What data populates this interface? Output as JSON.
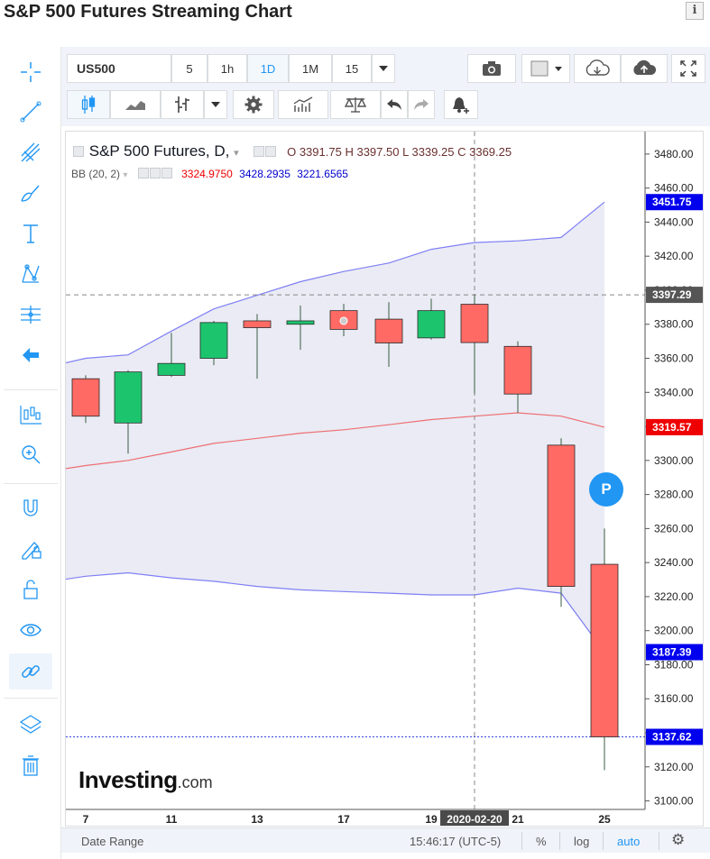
{
  "page": {
    "title": "S&P 500 Futures Streaming Chart",
    "info_icon": "i"
  },
  "toolbar": {
    "symbol": "US500",
    "intervals": [
      "5",
      "1h",
      "1D",
      "1M",
      "15"
    ],
    "selected_interval": "1D"
  },
  "legend": {
    "symbol_line": "S&P 500 Futures, D,",
    "open_label": "O",
    "open": "3391.75",
    "high_label": "H",
    "high": "3397.50",
    "low_label": "L",
    "low": "3339.25",
    "close_label": "C",
    "close": "3369.25",
    "indicator": "BB (20, 2)",
    "bb_middle": "3324.9750",
    "bb_upper": "3428.2935",
    "bb_lower": "3221.6565"
  },
  "bottom_bar": {
    "date_range": "Date Range",
    "time": "15:46:17 (UTC-5)",
    "percent": "%",
    "log": "log",
    "auto": "auto"
  },
  "watermark": {
    "brand": "Investing",
    "suffix": ".com"
  },
  "chart_data": {
    "type": "candlestick",
    "title": "S&P 500 Futures, D",
    "ylim": [
      3095,
      3490
    ],
    "y_ticks": [
      3100,
      3120,
      3140,
      3160,
      3180,
      3200,
      3220,
      3240,
      3260,
      3280,
      3300,
      3320,
      3340,
      3360,
      3380,
      3400,
      3420,
      3440,
      3460,
      3480
    ],
    "x_ticks": [
      "7",
      "11",
      "13",
      "17",
      "19",
      "21",
      "25"
    ],
    "crosshair_date": "2020-02-20",
    "crosshair_price": "3397.29",
    "price_tags": [
      {
        "label": "3451.75",
        "value": 3451.75,
        "color": "#0000ee"
      },
      {
        "label": "3397.29",
        "value": 3397.29,
        "color": "#555555"
      },
      {
        "label": "3319.57",
        "value": 3319.57,
        "color": "#ee0000"
      },
      {
        "label": "3187.39",
        "value": 3187.39,
        "color": "#0000ee"
      },
      {
        "label": "3137.62",
        "value": 3137.62,
        "color": "#0000ee"
      }
    ],
    "candles": [
      {
        "date": "2020-02-06",
        "open": 3348,
        "high": 3350,
        "low": 3322,
        "close": 3326
      },
      {
        "date": "2020-02-07",
        "open": 3322,
        "high": 3353,
        "low": 3304,
        "close": 3352
      },
      {
        "date": "2020-02-10",
        "open": 3350,
        "high": 3375,
        "low": 3349,
        "close": 3357
      },
      {
        "date": "2020-02-11",
        "open": 3360,
        "high": 3382,
        "low": 3356,
        "close": 3381
      },
      {
        "date": "2020-02-12",
        "open": 3382,
        "high": 3386,
        "low": 3348,
        "close": 3378
      },
      {
        "date": "2020-02-13",
        "open": 3380,
        "high": 3391,
        "low": 3365,
        "close": 3382
      },
      {
        "date": "2020-02-14",
        "open": 3388,
        "high": 3392,
        "low": 3373,
        "close": 3377
      },
      {
        "date": "2020-02-17",
        "open": 3383,
        "high": 3393,
        "low": 3355,
        "close": 3369
      },
      {
        "date": "2020-02-18",
        "open": 3372,
        "high": 3395,
        "low": 3371,
        "close": 3388
      },
      {
        "date": "2020-02-20",
        "open": 3391.75,
        "high": 3397.5,
        "low": 3339.25,
        "close": 3369.25
      },
      {
        "date": "2020-02-21",
        "open": 3367,
        "high": 3370,
        "low": 3328,
        "close": 3339
      },
      {
        "date": "2020-02-24",
        "open": 3309,
        "high": 3313,
        "low": 3214,
        "close": 3226
      },
      {
        "date": "2020-02-25",
        "open": 3239,
        "high": 3260,
        "low": 3118,
        "close": 3137.62
      }
    ],
    "bollinger": {
      "name": "BB (20, 2)",
      "upper": [
        3360,
        3362,
        3376,
        3389,
        3397,
        3405,
        3411,
        3416,
        3424,
        3428,
        3429,
        3431,
        3451.75
      ],
      "middle": [
        3297,
        3300,
        3305,
        3310,
        3313,
        3316,
        3318,
        3321,
        3324,
        3326,
        3328,
        3326,
        3319.57
      ],
      "lower": [
        3232,
        3234,
        3231,
        3229,
        3226,
        3224,
        3223,
        3222,
        3221,
        3221,
        3225,
        3222,
        3187.39
      ]
    },
    "colors": {
      "up": "#1dc46e",
      "down": "#ff6a64",
      "band_fill": "#e6e7f2",
      "band_line": "#7f7ff5",
      "mid_line": "#ee6f73"
    }
  }
}
